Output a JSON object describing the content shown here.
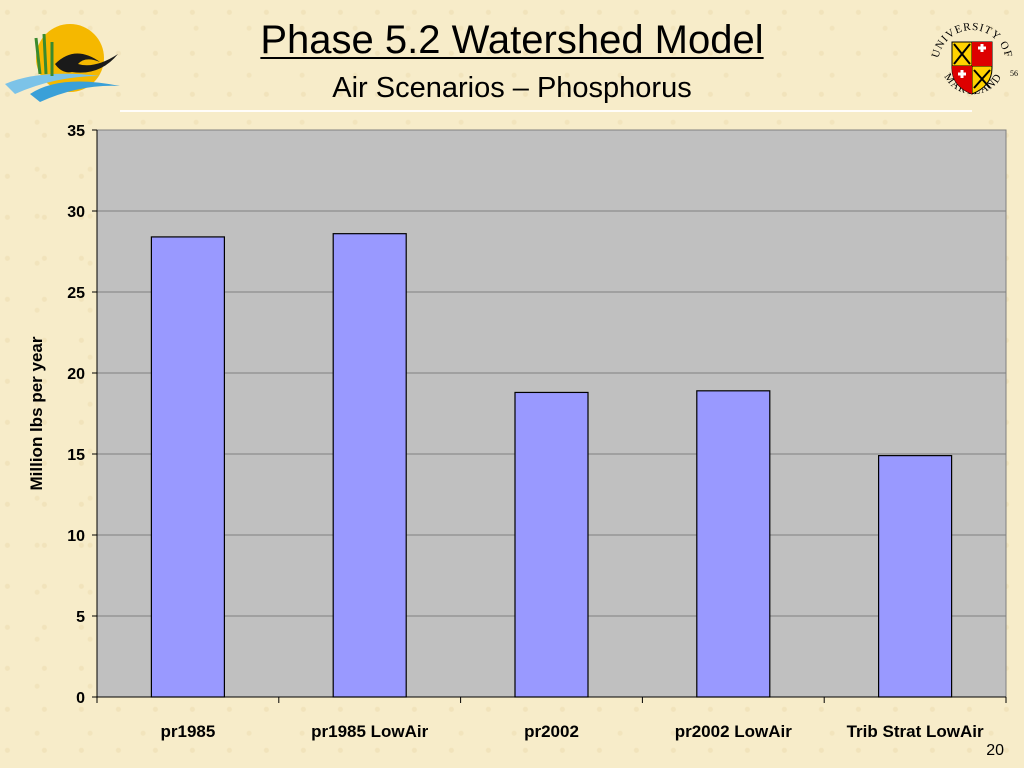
{
  "slide": {
    "title": "Phase 5.2 Watershed Model",
    "subtitle": "Air Scenarios – Phosphorus",
    "page_number": "20",
    "logo_right_text_top": "UNIVERSITY OF",
    "logo_right_text_bottom": "MARYLAND",
    "logo_right_year": "56"
  },
  "colors": {
    "bar_fill": "#9999ff",
    "bar_stroke": "#000000",
    "plot_background": "#c0c0c0",
    "gridline": "#808080",
    "slide_background": "#f7ecc9"
  },
  "chart_data": {
    "type": "bar",
    "title": "",
    "xlabel": "",
    "ylabel": "Million lbs per year",
    "categories": [
      "pr1985",
      "pr1985 LowAir",
      "pr2002",
      "pr2002 LowAir",
      "Trib Strat LowAir"
    ],
    "values": [
      28.4,
      28.6,
      18.8,
      18.9,
      14.9
    ],
    "ylim": [
      0,
      35
    ],
    "yticks": [
      0,
      5,
      10,
      15,
      20,
      25,
      30,
      35
    ],
    "ytick_labels": [
      "0",
      "5",
      "10",
      "15",
      "20",
      "25",
      "30",
      "35"
    ],
    "grid": true,
    "legend": "none"
  }
}
